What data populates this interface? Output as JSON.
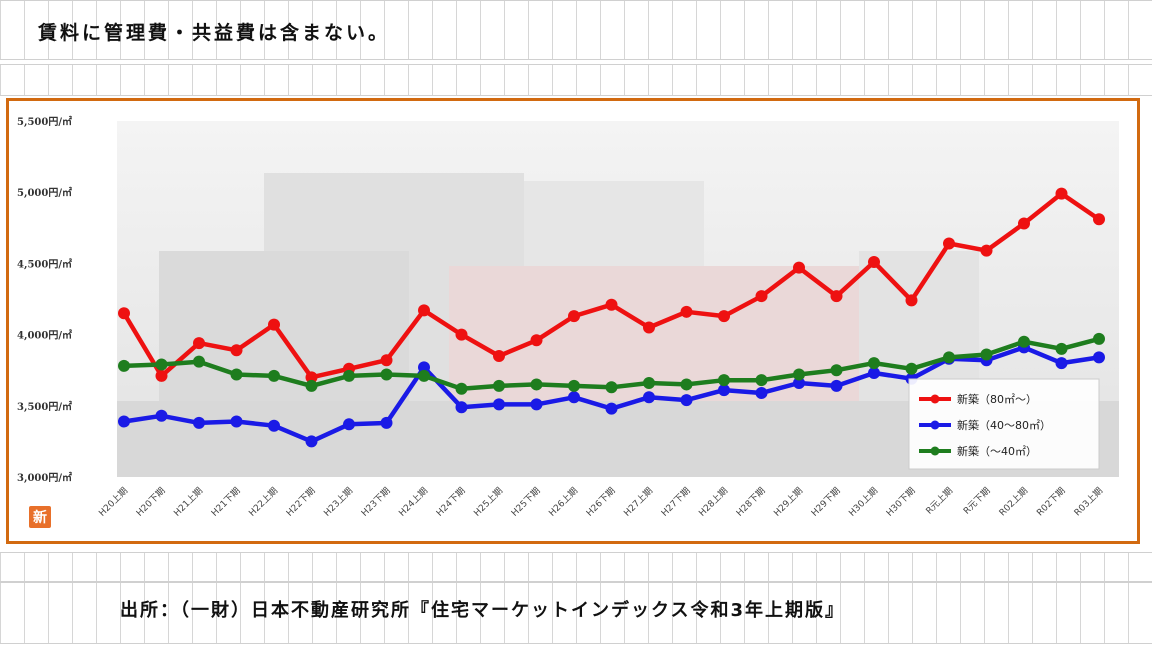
{
  "note": "賃料に管理費・共益費は含まない。",
  "source": "出所：（一財）日本不動産研究所『住宅マーケットインデックス令和3年上期版』",
  "badge": "新",
  "chart_data": {
    "type": "line",
    "y_unit_suffix": "円/㎡",
    "ylim": [
      3000,
      5500
    ],
    "yticks": [
      3000,
      3500,
      4000,
      4500,
      5000,
      5500
    ],
    "ytick_labels": [
      "3,000円/㎡",
      "3,500円/㎡",
      "4,000円/㎡",
      "4,500円/㎡",
      "5,000円/㎡",
      "5,500円/㎡"
    ],
    "categories": [
      "H20上期",
      "H20下期",
      "H21上期",
      "H21下期",
      "H22上期",
      "H22下期",
      "H23上期",
      "H23下期",
      "H24上期",
      "H24下期",
      "H25上期",
      "H25下期",
      "H26上期",
      "H26下期",
      "H27上期",
      "H27下期",
      "H28上期",
      "H28下期",
      "H29上期",
      "H29下期",
      "H30上期",
      "H30下期",
      "R元上期",
      "R元下期",
      "R02上期",
      "R02下期",
      "R03上期"
    ],
    "grid": false,
    "legend_position": "bottom-right",
    "series": [
      {
        "name": "新築（80㎡～）",
        "color": "#ee1111",
        "values": [
          4150,
          3710,
          3940,
          3890,
          4070,
          3700,
          3760,
          3820,
          4170,
          4000,
          3850,
          3960,
          4130,
          4210,
          4050,
          4160,
          4130,
          4270,
          4470,
          4270,
          4510,
          4240,
          4640,
          4590,
          4780,
          4990,
          4810
        ]
      },
      {
        "name": "新築（40～80㎡）",
        "color": "#1a1ae6",
        "values": [
          3390,
          3430,
          3380,
          3390,
          3360,
          3250,
          3370,
          3380,
          3770,
          3490,
          3510,
          3510,
          3560,
          3480,
          3560,
          3540,
          3610,
          3590,
          3660,
          3640,
          3730,
          3690,
          3830,
          3820,
          3910,
          3800,
          3840
        ]
      },
      {
        "name": "新築（～40㎡）",
        "color": "#1e7d1e",
        "values": [
          3780,
          3790,
          3810,
          3720,
          3710,
          3640,
          3710,
          3720,
          3710,
          3620,
          3640,
          3650,
          3640,
          3630,
          3660,
          3650,
          3680,
          3680,
          3720,
          3750,
          3800,
          3760,
          3840,
          3860,
          3950,
          3900,
          3970
        ]
      }
    ]
  }
}
